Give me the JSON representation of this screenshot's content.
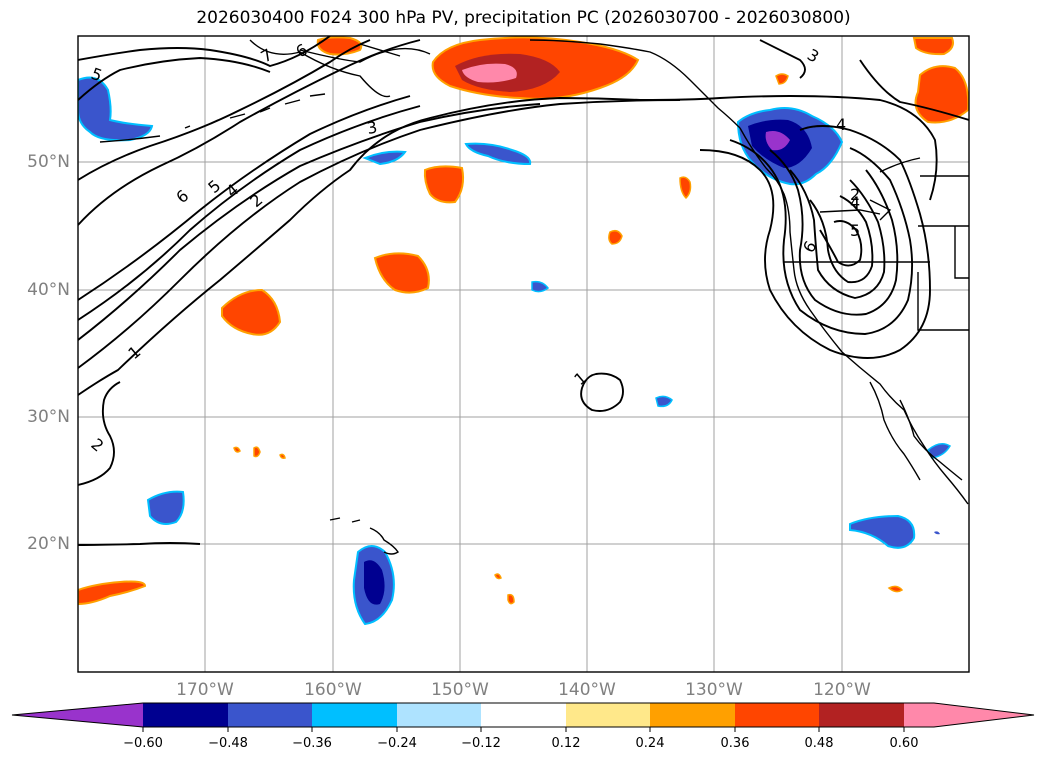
{
  "title": "2026030400 F024 300 hPa PV, precipitation PC (2026030700 - 2026030800)",
  "lat_labels": [
    "50°N",
    "40°N",
    "30°N",
    "20°N"
  ],
  "lon_labels": [
    "170°W",
    "160°W",
    "150°W",
    "140°W",
    "130°W",
    "120°W"
  ],
  "colorbar": {
    "ticks": [
      "−0.60",
      "−0.48",
      "−0.36",
      "−0.24",
      "−0.12",
      "0.12",
      "0.24",
      "0.36",
      "0.48",
      "0.60"
    ],
    "colors": [
      "#9933cc",
      "#000090",
      "#3a55cc",
      "#00bfff",
      "#aee3ff",
      "#ffffff",
      "#ffe88a",
      "#ffa000",
      "#ff4500",
      "#b22222",
      "#ff88aa"
    ]
  },
  "contour_labels": [
    "7",
    "6",
    "5",
    "4",
    "3",
    "2",
    "1",
    "6",
    "5",
    "4",
    "2",
    "1",
    "2",
    "3",
    "4",
    "5",
    "6",
    "7",
    "1"
  ]
}
